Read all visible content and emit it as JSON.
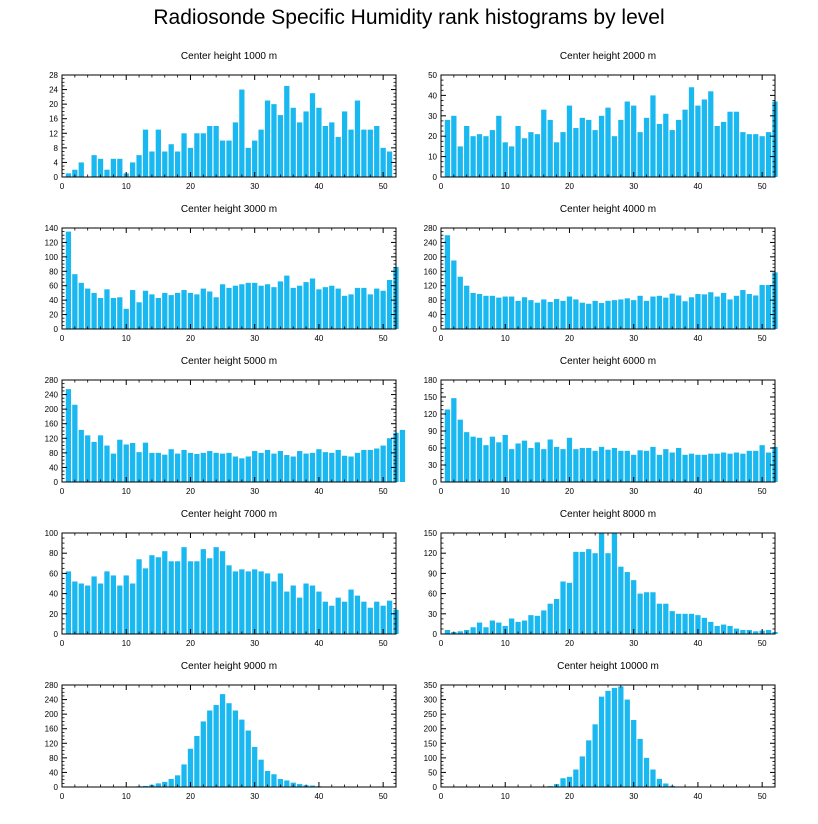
{
  "figure_title": "Radiosonde Specific Humidity rank histograms by level",
  "bar_color": "#1ab8f0",
  "chart_data": [
    {
      "type": "bar",
      "title": "Center height 1000 m",
      "xlabel": "",
      "ylabel": "",
      "xlim": [
        0,
        52
      ],
      "ylim": [
        0,
        28
      ],
      "yticks": [
        0,
        4,
        8,
        12,
        16,
        20,
        24,
        28
      ],
      "xticks": [
        0,
        10,
        20,
        30,
        40,
        50
      ],
      "values": [
        1,
        2,
        4,
        0,
        6,
        5,
        2,
        5,
        5,
        1,
        4,
        6,
        13,
        7,
        13,
        7,
        9,
        7,
        12,
        8,
        12,
        12,
        14,
        14,
        10,
        10,
        15,
        24,
        8,
        10,
        13,
        21,
        20,
        17,
        25,
        19,
        15,
        18,
        23,
        19,
        14,
        15,
        11,
        18,
        13,
        21,
        13,
        13,
        14,
        8,
        7
      ]
    },
    {
      "type": "bar",
      "title": "Center height 2000 m",
      "xlabel": "",
      "ylabel": "",
      "xlim": [
        0,
        52
      ],
      "ylim": [
        0,
        50
      ],
      "yticks": [
        0,
        10,
        20,
        30,
        40,
        50
      ],
      "xticks": [
        0,
        10,
        20,
        30,
        40,
        50
      ],
      "values": [
        28,
        30,
        15,
        25,
        20,
        21,
        20,
        23,
        30,
        17,
        15,
        25,
        19,
        22,
        21,
        33,
        28,
        17,
        22,
        35,
        24,
        29,
        28,
        23,
        30,
        34,
        20,
        28,
        37,
        35,
        22,
        29,
        40,
        26,
        31,
        23,
        28,
        33,
        44,
        35,
        38,
        42,
        25,
        27,
        32,
        32,
        22,
        21,
        21,
        20,
        22,
        37
      ]
    },
    {
      "type": "bar",
      "title": "Center height 3000 m",
      "xlabel": "",
      "ylabel": "",
      "xlim": [
        0,
        52
      ],
      "ylim": [
        0,
        140
      ],
      "yticks": [
        0,
        20,
        40,
        60,
        80,
        100,
        120,
        140
      ],
      "xticks": [
        0,
        10,
        20,
        30,
        40,
        50
      ],
      "values": [
        135,
        76,
        64,
        56,
        50,
        43,
        55,
        43,
        44,
        28,
        54,
        37,
        53,
        48,
        43,
        50,
        47,
        50,
        54,
        50,
        48,
        56,
        52,
        44,
        62,
        57,
        60,
        62,
        64,
        64,
        60,
        62,
        58,
        66,
        74,
        57,
        60,
        65,
        70,
        55,
        58,
        60,
        56,
        46,
        48,
        57,
        57,
        48,
        56,
        53,
        68,
        86
      ]
    },
    {
      "type": "bar",
      "title": "Center height 4000 m",
      "xlabel": "",
      "ylabel": "",
      "xlim": [
        0,
        52
      ],
      "ylim": [
        0,
        280
      ],
      "yticks": [
        0,
        40,
        80,
        120,
        160,
        200,
        240,
        280
      ],
      "xticks": [
        0,
        10,
        20,
        30,
        40,
        50
      ],
      "values": [
        260,
        190,
        145,
        120,
        100,
        97,
        92,
        92,
        87,
        90,
        90,
        78,
        88,
        80,
        73,
        82,
        75,
        83,
        78,
        90,
        82,
        73,
        70,
        78,
        72,
        78,
        80,
        82,
        85,
        80,
        92,
        78,
        90,
        92,
        87,
        98,
        93,
        77,
        88,
        97,
        96,
        102,
        90,
        100,
        82,
        92,
        108,
        97,
        93,
        122,
        122,
        157
      ]
    },
    {
      "type": "bar",
      "title": "Center height 5000 m",
      "xlabel": "",
      "ylabel": "",
      "xlim": [
        0,
        52
      ],
      "ylim": [
        0,
        280
      ],
      "yticks": [
        0,
        40,
        80,
        120,
        160,
        200,
        240,
        280
      ],
      "xticks": [
        0,
        10,
        20,
        30,
        40,
        50
      ],
      "values": [
        255,
        212,
        143,
        128,
        110,
        128,
        100,
        78,
        116,
        103,
        107,
        82,
        108,
        80,
        80,
        75,
        90,
        78,
        88,
        80,
        77,
        80,
        85,
        80,
        78,
        80,
        70,
        65,
        70,
        85,
        80,
        88,
        78,
        85,
        74,
        70,
        85,
        78,
        80,
        90,
        82,
        80,
        88,
        72,
        70,
        80,
        88,
        88,
        92,
        100,
        120,
        135,
        143
      ]
    },
    {
      "type": "bar",
      "title": "Center height 6000 m",
      "xlabel": "",
      "ylabel": "",
      "xlim": [
        0,
        52
      ],
      "ylim": [
        0,
        180
      ],
      "yticks": [
        0,
        30,
        60,
        90,
        120,
        150,
        180
      ],
      "xticks": [
        0,
        10,
        20,
        30,
        40,
        50
      ],
      "values": [
        128,
        148,
        110,
        88,
        80,
        78,
        65,
        80,
        70,
        83,
        58,
        68,
        73,
        60,
        70,
        58,
        75,
        62,
        58,
        78,
        58,
        60,
        60,
        55,
        62,
        57,
        60,
        55,
        55,
        48,
        56,
        55,
        62,
        48,
        58,
        52,
        60,
        48,
        50,
        48,
        48,
        50,
        50,
        52,
        50,
        52,
        50,
        55,
        55,
        65,
        52,
        62
      ]
    },
    {
      "type": "bar",
      "title": "Center height 7000 m",
      "xlabel": "",
      "ylabel": "",
      "xlim": [
        0,
        52
      ],
      "ylim": [
        0,
        100
      ],
      "yticks": [
        0,
        20,
        40,
        60,
        80,
        100
      ],
      "xticks": [
        0,
        10,
        20,
        30,
        40,
        50
      ],
      "values": [
        62,
        52,
        50,
        48,
        57,
        50,
        62,
        58,
        48,
        58,
        50,
        74,
        65,
        78,
        76,
        82,
        72,
        72,
        86,
        72,
        72,
        84,
        75,
        86,
        82,
        68,
        62,
        64,
        62,
        64,
        62,
        60,
        52,
        60,
        42,
        48,
        36,
        50,
        48,
        42,
        32,
        28,
        36,
        32,
        44,
        38,
        32,
        26,
        32,
        28,
        33,
        24
      ]
    },
    {
      "type": "bar",
      "title": "Center height 8000 m",
      "xlabel": "",
      "ylabel": "",
      "xlim": [
        0,
        52
      ],
      "ylim": [
        0,
        150
      ],
      "yticks": [
        0,
        30,
        60,
        90,
        120,
        150
      ],
      "xticks": [
        0,
        10,
        20,
        30,
        40,
        50
      ],
      "values": [
        6,
        3,
        4,
        6,
        10,
        17,
        10,
        20,
        17,
        12,
        23,
        18,
        20,
        28,
        27,
        35,
        45,
        52,
        78,
        76,
        122,
        122,
        126,
        120,
        150,
        120,
        150,
        100,
        92,
        80,
        60,
        62,
        62,
        45,
        45,
        34,
        30,
        30,
        30,
        28,
        24,
        18,
        12,
        14,
        12,
        8,
        6,
        6,
        4,
        5,
        6,
        3
      ]
    },
    {
      "type": "bar",
      "title": "Center height 9000 m",
      "xlabel": "",
      "ylabel": "",
      "xlim": [
        0,
        52
      ],
      "ylim": [
        0,
        280
      ],
      "yticks": [
        0,
        40,
        80,
        120,
        160,
        200,
        240,
        280
      ],
      "xticks": [
        0,
        10,
        20,
        30,
        40,
        50
      ],
      "values": [
        0,
        0,
        0,
        0,
        0,
        0,
        0,
        0,
        0,
        0,
        0,
        2,
        3,
        6,
        10,
        14,
        22,
        32,
        62,
        105,
        140,
        180,
        210,
        225,
        255,
        230,
        210,
        185,
        155,
        110,
        75,
        44,
        35,
        22,
        18,
        12,
        8,
        5,
        4,
        2,
        1,
        0,
        0,
        0,
        0,
        0,
        0,
        0,
        0,
        0,
        0,
        0
      ]
    },
    {
      "type": "bar",
      "title": "Center height 10000 m",
      "xlabel": "",
      "ylabel": "",
      "xlim": [
        0,
        52
      ],
      "ylim": [
        0,
        350
      ],
      "yticks": [
        0,
        50,
        100,
        150,
        200,
        250,
        300,
        350
      ],
      "xticks": [
        0,
        10,
        20,
        30,
        40,
        50
      ],
      "values": [
        0,
        0,
        0,
        0,
        0,
        0,
        0,
        0,
        0,
        0,
        0,
        0,
        0,
        0,
        0,
        1,
        3,
        10,
        30,
        35,
        60,
        105,
        160,
        215,
        310,
        330,
        340,
        345,
        300,
        230,
        165,
        100,
        60,
        28,
        12,
        4,
        1,
        0,
        0,
        0,
        0,
        0,
        0,
        0,
        0,
        0,
        0,
        0,
        0,
        0,
        0,
        0
      ]
    }
  ]
}
